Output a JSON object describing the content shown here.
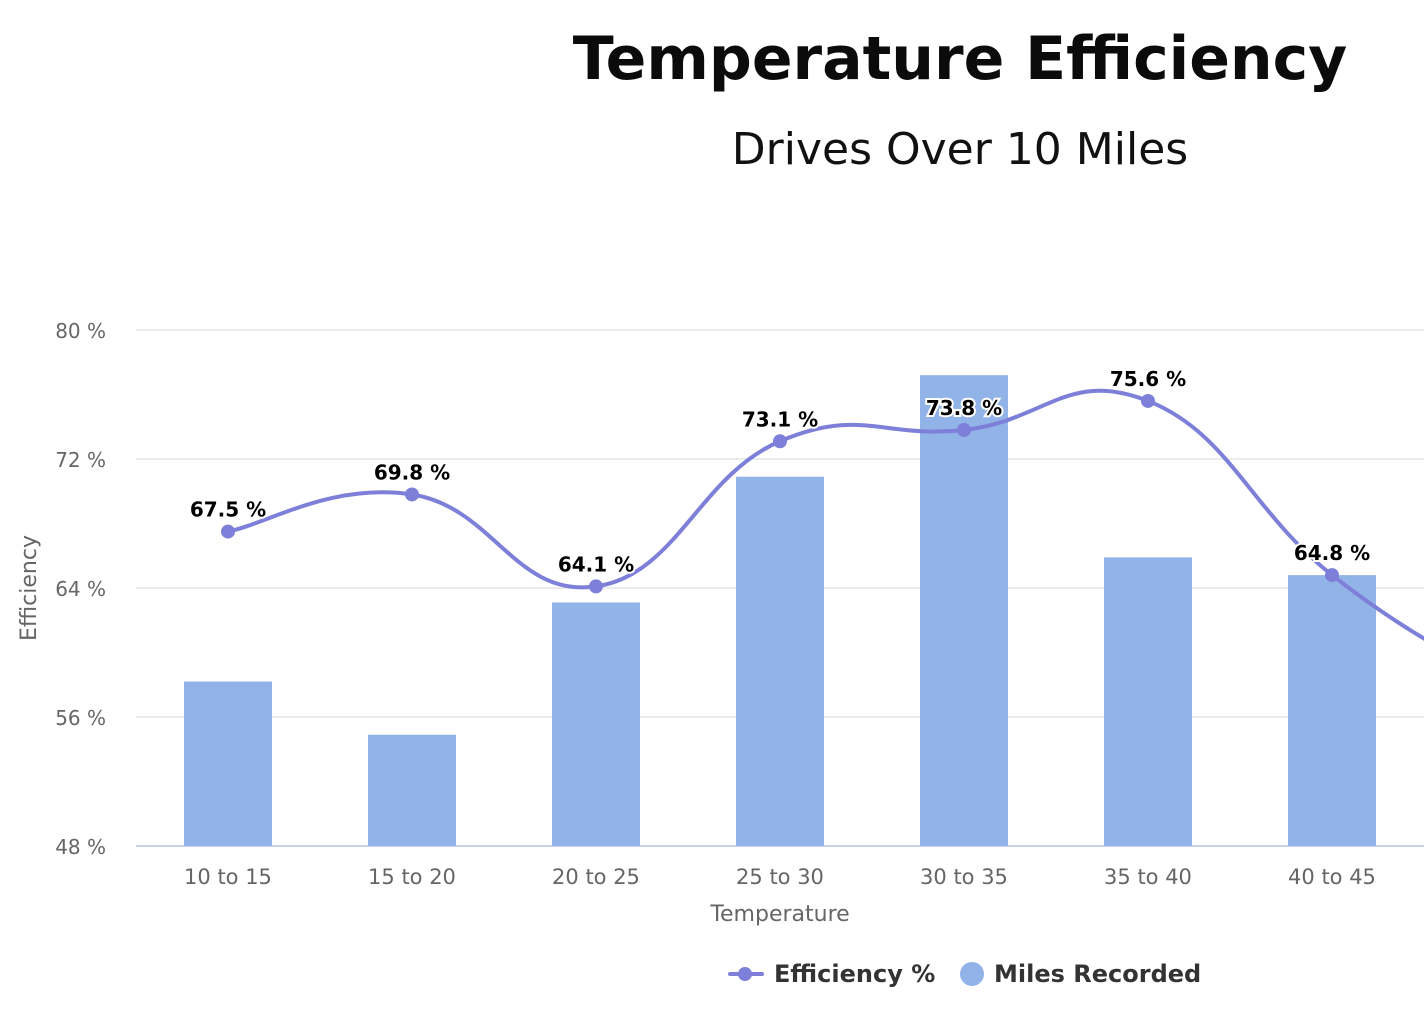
{
  "chart_data": {
    "type": "bar+line",
    "title": "Temperature Efficiency",
    "subtitle": "Drives Over 10 Miles",
    "xlabel": "Temperature",
    "ylabel": "Efficiency",
    "categories": [
      "10 to 15",
      "15 to 20",
      "20 to 25",
      "25 to 30",
      "30 to 35",
      "35 to 40",
      "40 to 45"
    ],
    "y_ticks": [
      48,
      56,
      64,
      72,
      80
    ],
    "y_tick_labels": [
      "48 %",
      "56 %",
      "64 %",
      "72 %",
      "80 %"
    ],
    "ylim": [
      48,
      80
    ],
    "grid": true,
    "legend_position": "bottom-center",
    "series": [
      {
        "name": "Miles Recorded",
        "type": "bar",
        "color": "#92b3e8",
        "values_on_efficiency_scale": [
          58.2,
          54.9,
          63.1,
          70.9,
          77.2,
          65.9,
          64.8
        ]
      },
      {
        "name": "Efficiency %",
        "type": "spline",
        "color": "#7d7fd9",
        "values": [
          67.5,
          69.8,
          64.1,
          73.1,
          73.8,
          75.6,
          64.8
        ],
        "data_labels": [
          "67.5 %",
          "69.8 %",
          "64.1 %",
          "73.1 %",
          "73.8 %",
          "75.6 %",
          "64.8 %"
        ],
        "continues_past_right_edge_to": 57.6
      }
    ]
  }
}
